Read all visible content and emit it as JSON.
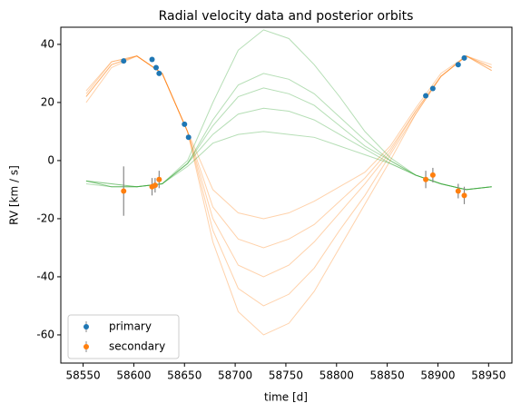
{
  "chart_data": {
    "type": "errorbar",
    "title": "Radial velocity data and posterior orbits",
    "x_label": "time [d]",
    "y_label": "RV [km / s]",
    "xlim": [
      58528,
      58973
    ],
    "ylim": [
      -69.7,
      45.9
    ],
    "xticks": [
      58550,
      58600,
      58650,
      58700,
      58750,
      58800,
      58850,
      58900,
      58950
    ],
    "yticks": [
      -60,
      -40,
      -20,
      0,
      20,
      40
    ],
    "grid": false,
    "legend": "lower left",
    "errorbar_color": "#888888",
    "series": [
      {
        "name": "primary",
        "color": "#1f77b4",
        "x": [
          58590,
          58618,
          58622,
          58625,
          58650,
          58654,
          58888,
          58895,
          58920,
          58926
        ],
        "values": [
          34.3,
          34.8,
          32,
          30,
          12.5,
          8,
          22.3,
          24.8,
          33,
          35.3
        ],
        "errors": [
          0.5,
          0.5,
          0.5,
          0.5,
          0.5,
          0.5,
          0.5,
          0.5,
          0.5,
          0.5
        ]
      },
      {
        "name": "secondary",
        "color": "#ff7f0e",
        "x": [
          58590,
          58618,
          58621,
          58625,
          58888,
          58895,
          58920,
          58926
        ],
        "values": [
          -10.5,
          -9,
          -8.5,
          -6.5,
          -6.5,
          -5,
          -10.5,
          -12
        ],
        "errors": [
          8.5,
          3,
          2.5,
          3,
          3,
          2.5,
          2.5,
          3
        ]
      }
    ],
    "curve_x": [
      58553,
      58578,
      58603,
      58628,
      58653,
      58678,
      58703,
      58728,
      58753,
      58778,
      58803,
      58828,
      58853,
      58878,
      58903,
      58928,
      58953
    ],
    "posterior_curves": [
      {
        "color": "#ff7f0e",
        "values": [
          22,
          33,
          36,
          30,
          10,
          -20,
          -36,
          -40,
          -36,
          -28,
          -18,
          -8,
          3,
          17,
          29,
          36,
          32
        ]
      },
      {
        "color": "#ff7f0e",
        "values": [
          24,
          34,
          36,
          30,
          10,
          -28,
          -52,
          -60,
          -56,
          -45,
          -30,
          -15,
          0,
          16,
          29,
          36,
          31
        ]
      },
      {
        "color": "#ff7f0e",
        "values": [
          20,
          32,
          36,
          30,
          10,
          -10,
          -18,
          -20,
          -18,
          -14,
          -9,
          -4,
          5,
          18,
          30,
          36,
          33
        ]
      },
      {
        "color": "#ff7f0e",
        "values": [
          22,
          33,
          36,
          30,
          10,
          -16,
          -27,
          -30,
          -27,
          -22,
          -14,
          -6,
          4,
          17,
          29,
          36,
          32
        ]
      },
      {
        "color": "#ff7f0e",
        "values": [
          23,
          34,
          36,
          30,
          10,
          -24,
          -44,
          -50,
          -46,
          -37,
          -24,
          -12,
          2,
          16,
          29,
          36,
          31
        ]
      },
      {
        "color": "#2ca02c",
        "values": [
          -7,
          -8,
          -9,
          -8,
          -2,
          6,
          9,
          10,
          9,
          8,
          5,
          2,
          -1,
          -5,
          -8,
          -10,
          -9
        ]
      },
      {
        "color": "#2ca02c",
        "values": [
          -7,
          -9,
          -9,
          -8,
          -1,
          12,
          22,
          25,
          23,
          19,
          12,
          5,
          0,
          -5,
          -8,
          -10,
          -9
        ]
      },
      {
        "color": "#2ca02c",
        "values": [
          -8,
          -9,
          -9,
          -8,
          0,
          20,
          38,
          45,
          42,
          33,
          22,
          10,
          1,
          -5,
          -8,
          -10,
          -9
        ]
      },
      {
        "color": "#2ca02c",
        "values": [
          -7,
          -8,
          -9,
          -8,
          -1,
          9,
          16,
          18,
          17,
          14,
          9,
          4,
          -1,
          -5,
          -8,
          -10,
          -9
        ]
      },
      {
        "color": "#2ca02c",
        "values": [
          -7,
          -9,
          -9,
          -8,
          -1,
          14,
          26,
          30,
          28,
          23,
          15,
          7,
          0,
          -5,
          -8,
          -10,
          -9
        ]
      }
    ]
  }
}
